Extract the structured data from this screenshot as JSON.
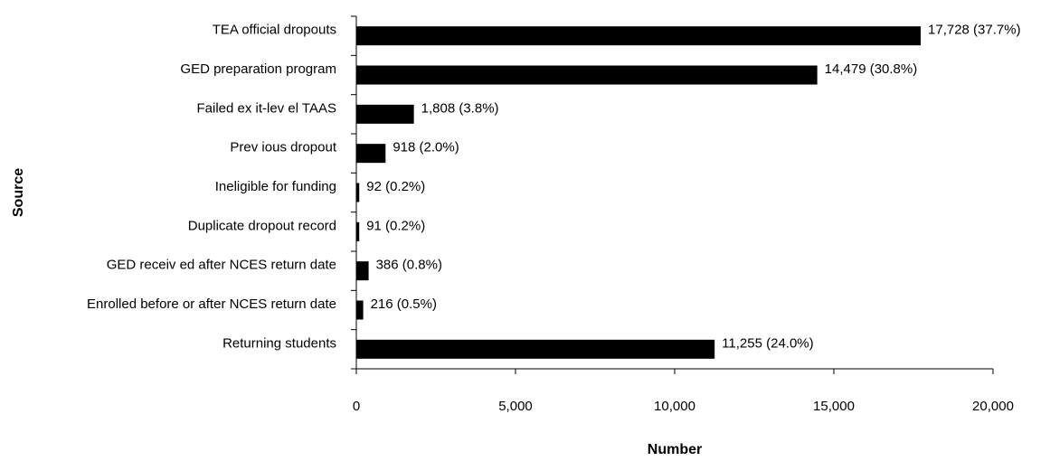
{
  "chart_data": {
    "type": "bar",
    "orientation": "horizontal",
    "xlabel": "Number",
    "ylabel": "Source",
    "xlim": [
      0,
      20000
    ],
    "xticks": [
      0,
      5000,
      10000,
      15000,
      20000
    ],
    "xtick_labels": [
      "0",
      "5,000",
      "10,000",
      "15,000",
      "20,000"
    ],
    "grid": false,
    "bar_color": "#000000",
    "categories": [
      "TEA official dropouts",
      "GED preparation program",
      "Failed ex it-lev el TAAS",
      "Prev ious dropout",
      "Ineligible for funding",
      "Duplicate dropout record",
      "GED receiv ed after NCES return date",
      "Enrolled before or after NCES return date",
      "Returning students"
    ],
    "values": [
      17728,
      14479,
      1808,
      918,
      92,
      91,
      386,
      216,
      11255
    ],
    "data_labels": [
      "17,728 (37.7%)",
      "14,479 (30.8%)",
      "1,808 (3.8%)",
      "918 (2.0%)",
      "92 (0.2%)",
      "91 (0.2%)",
      "386 (0.8%)",
      "216 (0.5%)",
      "11,255 (24.0%)"
    ]
  }
}
